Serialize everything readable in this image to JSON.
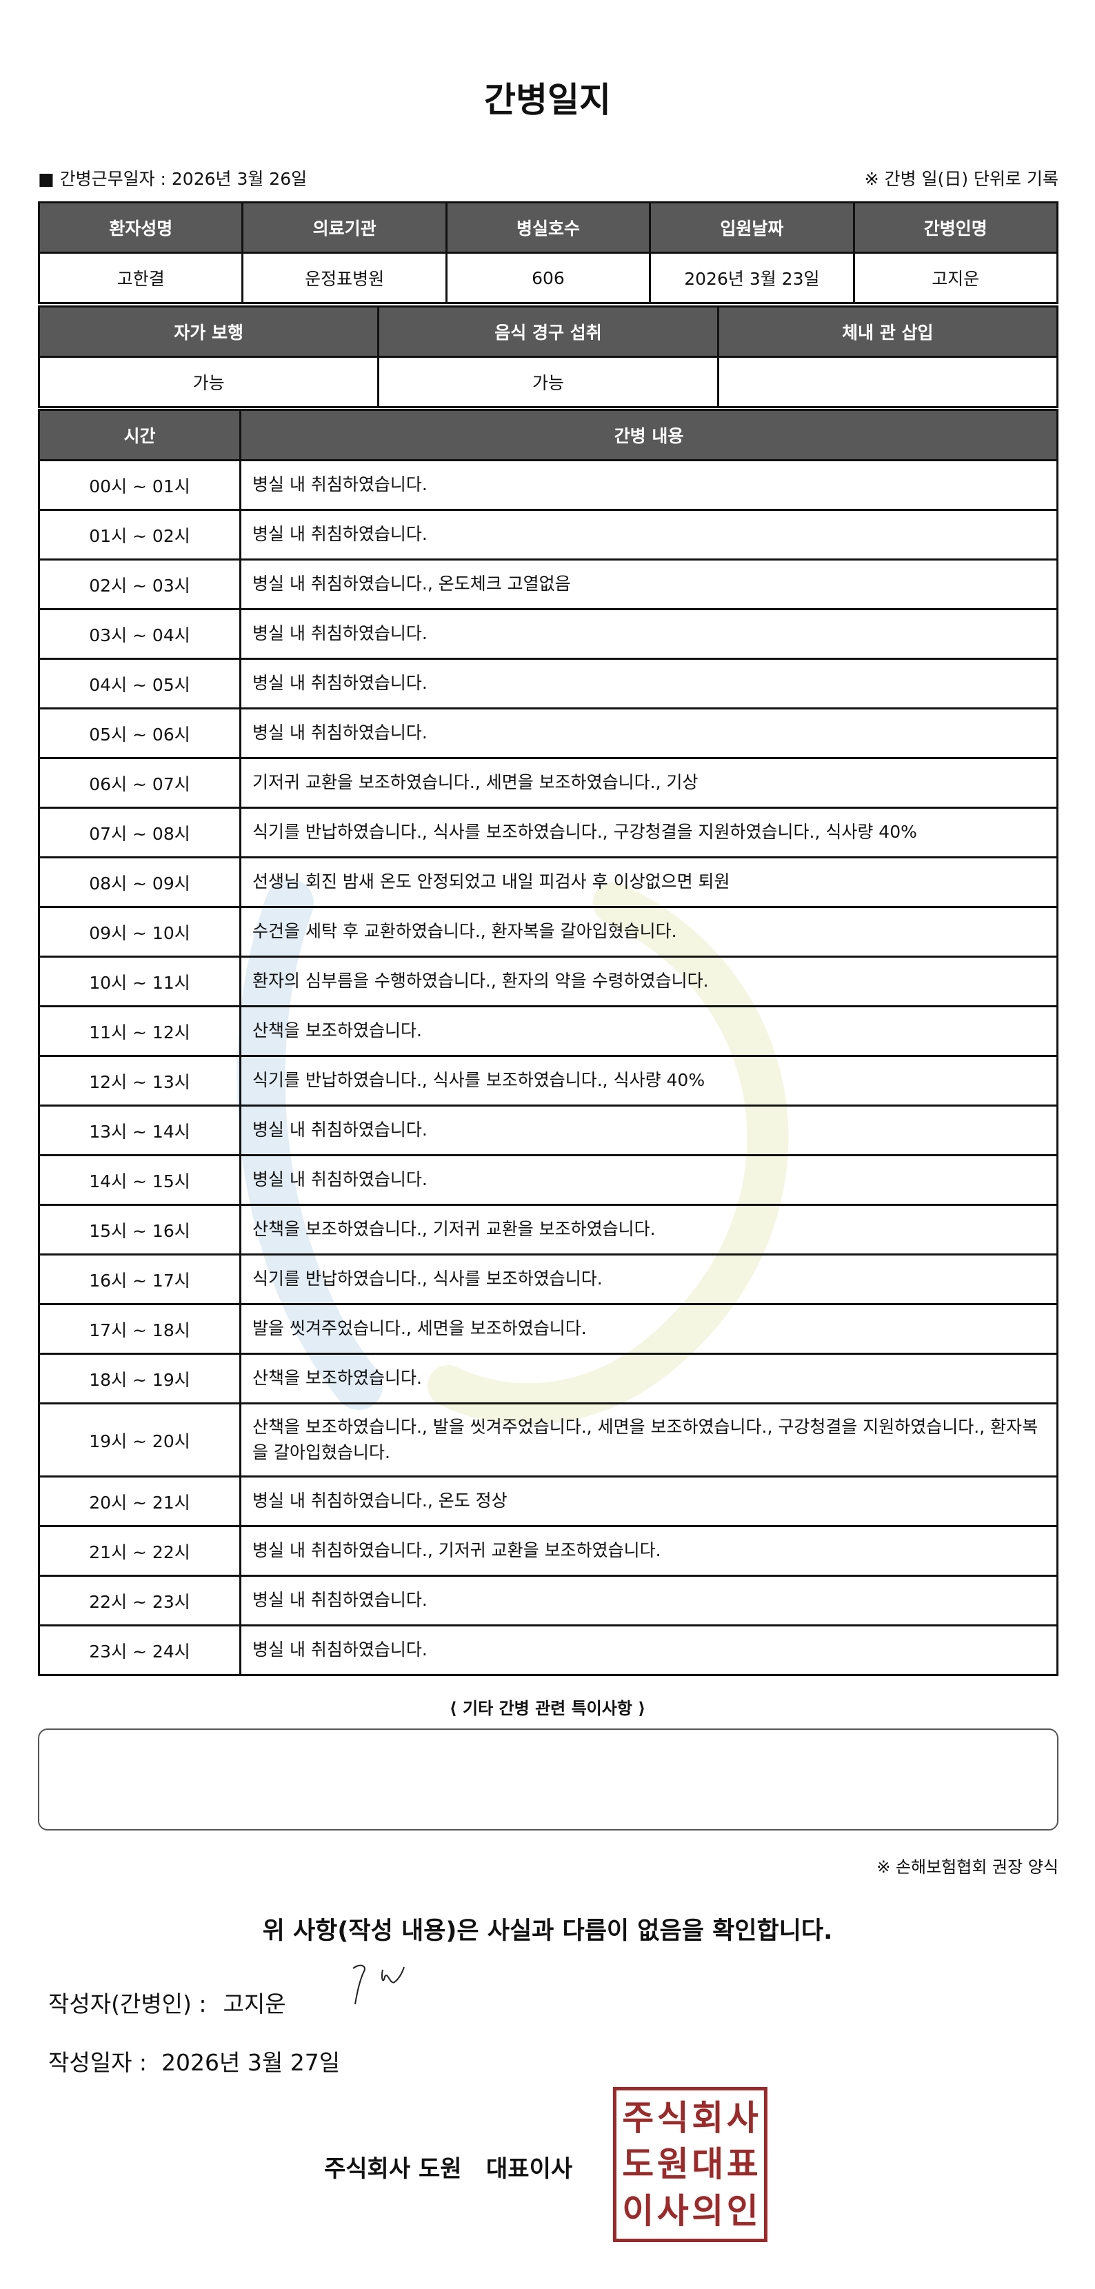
{
  "title": "간병일지",
  "work_date_label": "■ 간병근무일자  :  2026년 3월 26일",
  "unit_note": "※ 간병 일(日) 단위로 기록",
  "info_table": {
    "headers": [
      "환자성명",
      "의료기관",
      "병실호수",
      "입원날짜",
      "간병인명"
    ],
    "values": [
      "고한결",
      "운정표병원",
      "606",
      "2026년 3월 23일",
      "고지운"
    ]
  },
  "status_table": {
    "headers": [
      "자가 보행",
      "음식 경구 섭취",
      "체내 관 삽입"
    ],
    "values": [
      "가능",
      "가능",
      ""
    ]
  },
  "log_table": {
    "headers": [
      "시간",
      "간병 내용"
    ],
    "rows": [
      {
        "time": "00시 ~ 01시",
        "content": "병실 내 취침하였습니다."
      },
      {
        "time": "01시 ~ 02시",
        "content": "병실 내 취침하였습니다."
      },
      {
        "time": "02시 ~ 03시",
        "content": "병실 내 취침하였습니다., 온도체크 고열없음"
      },
      {
        "time": "03시 ~ 04시",
        "content": "병실 내 취침하였습니다."
      },
      {
        "time": "04시 ~ 05시",
        "content": "병실 내 취침하였습니다."
      },
      {
        "time": "05시 ~ 06시",
        "content": "병실 내 취침하였습니다."
      },
      {
        "time": "06시 ~ 07시",
        "content": "기저귀 교환을 보조하였습니다., 세면을 보조하였습니다., 기상"
      },
      {
        "time": "07시 ~ 08시",
        "content": "식기를 반납하였습니다., 식사를 보조하였습니다., 구강청결을 지원하였습니다., 식사량 40%"
      },
      {
        "time": "08시 ~ 09시",
        "content": "선생님 회진 밤새 온도 안정되었고 내일 피검사 후 이상없으면 퇴원"
      },
      {
        "time": "09시 ~ 10시",
        "content": "수건을 세탁 후 교환하였습니다., 환자복을 갈아입혔습니다."
      },
      {
        "time": "10시 ~ 11시",
        "content": "환자의 심부름을 수행하였습니다., 환자의 약을 수령하였습니다."
      },
      {
        "time": "11시 ~ 12시",
        "content": "산책을 보조하였습니다."
      },
      {
        "time": "12시 ~ 13시",
        "content": "식기를 반납하였습니다., 식사를 보조하였습니다., 식사량 40%"
      },
      {
        "time": "13시 ~ 14시",
        "content": "병실 내 취침하였습니다."
      },
      {
        "time": "14시 ~ 15시",
        "content": "병실 내 취침하였습니다."
      },
      {
        "time": "15시 ~ 16시",
        "content": "산책을 보조하였습니다., 기저귀 교환을 보조하였습니다."
      },
      {
        "time": "16시 ~ 17시",
        "content": "식기를 반납하였습니다., 식사를 보조하였습니다."
      },
      {
        "time": "17시 ~ 18시",
        "content": "발을 씻겨주었습니다., 세면을 보조하였습니다."
      },
      {
        "time": "18시 ~ 19시",
        "content": "산책을 보조하였습니다."
      },
      {
        "time": "19시 ~ 20시",
        "content": "산책을 보조하였습니다., 발을 씻겨주었습니다., 세면을 보조하였습니다., 구강청결을 지원하였습니다., 환자복을 갈아입혔습니다."
      },
      {
        "time": "20시 ~ 21시",
        "content": "병실 내 취침하였습니다., 온도 정상"
      },
      {
        "time": "21시 ~ 22시",
        "content": "병실 내 취침하였습니다., 기저귀 교환을 보조하였습니다."
      },
      {
        "time": "22시 ~ 23시",
        "content": "병실 내 취침하였습니다."
      },
      {
        "time": "23시 ~ 24시",
        "content": "병실 내 취침하였습니다."
      }
    ]
  },
  "notes": {
    "label": "⟨ 기타 간병 관련 특이사항 ⟩",
    "value": ""
  },
  "association_note": "※ 손해보험협회 권장 양식",
  "confirmation": "위 사항(작성 내용)은 사실과 다름이 없음을 확인합니다.",
  "author": {
    "label": "작성자(간병인) :",
    "name": "고지운"
  },
  "written_date": {
    "label": "작성일자 :",
    "value": "2026년 3월 27일"
  },
  "company": "주식회사 도원   대표이사",
  "seal_text": [
    "주",
    "식",
    "회",
    "사",
    "도",
    "원",
    "대",
    "표",
    "이",
    "사",
    "의",
    "인"
  ],
  "colors": {
    "header_bg": "#595959",
    "seal": "#9b2a2a"
  }
}
